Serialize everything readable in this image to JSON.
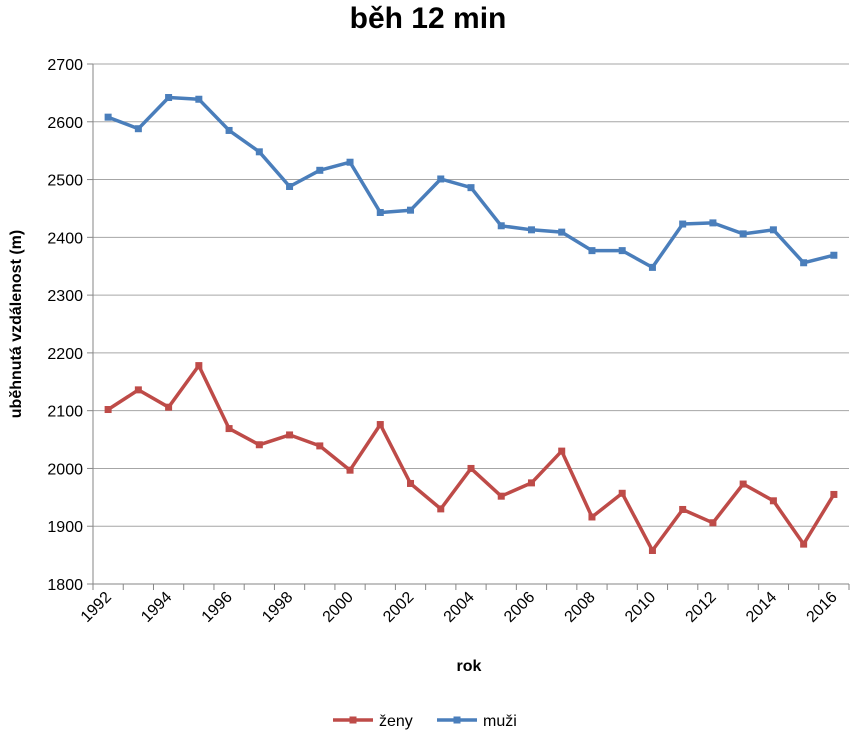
{
  "chart_data": {
    "type": "line",
    "title": "běh 12 min",
    "xlabel": "rok",
    "ylabel": "uběhnutá vzdálenost (m)",
    "ylim": [
      1800,
      2700
    ],
    "yticks": [
      "1800",
      "1900",
      "2000",
      "2100",
      "2200",
      "2300",
      "2400",
      "2500",
      "2600",
      "2700"
    ],
    "xtick_labels": [
      "1992",
      "1994",
      "1996",
      "1998",
      "2000",
      "2002",
      "2004",
      "2006",
      "2008",
      "2010",
      "2012",
      "2014",
      "2016"
    ],
    "grid": true,
    "legend": "bottom",
    "x": [
      1992,
      1993,
      1994,
      1995,
      1996,
      1997,
      1998,
      1999,
      2000,
      2001,
      2002,
      2003,
      2004,
      2005,
      2006,
      2007,
      2008,
      2009,
      2010,
      2011,
      2012,
      2013,
      2014,
      2015,
      2016
    ],
    "series": [
      {
        "name": "ženy",
        "color": "#be4b48",
        "values": [
          2102,
          2136,
          2106,
          2178,
          2069,
          2041,
          2058,
          2039,
          1997,
          2076,
          1974,
          1930,
          2000,
          1952,
          1975,
          2030,
          1916,
          1957,
          1858,
          1929,
          1906,
          1973,
          1944,
          1869,
          1955
        ]
      },
      {
        "name": "muži",
        "color": "#4a7ebb",
        "values": [
          2608,
          2588,
          2642,
          2639,
          2585,
          2548,
          2488,
          2516,
          2530,
          2443,
          2447,
          2501,
          2486,
          2420,
          2413,
          2409,
          2377,
          2377,
          2348,
          2423,
          2425,
          2406,
          2413,
          2356,
          2369
        ]
      }
    ]
  }
}
